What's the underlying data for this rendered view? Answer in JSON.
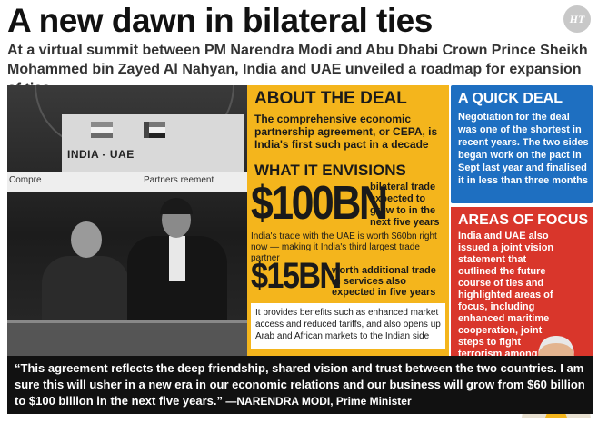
{
  "header": {
    "headline": "A new dawn in bilateral ties",
    "logo_text": "HT",
    "subhead": "At a virtual summit between PM Narendra Modi and Abu Dhabi Crown Prince Sheikh Mohammed bin Zayed Al Nahyan, India and UAE unveiled a roadmap for expansion of ties"
  },
  "photo": {
    "screen_label": "INDIA - UAE",
    "banner_left": "Compre",
    "banner_right": "Partners      reement"
  },
  "about_deal": {
    "title": "ABOUT THE DEAL",
    "text": "The comprehensive economic partnership agreement, or CEPA, is India's first such pact in a decade",
    "envisions_title": "WHAT IT ENVISIONS",
    "stat1_value": "$100BN",
    "stat1_desc": "bilateral trade expected to grow to in the next five years",
    "stat1_note": "India's trade with the UAE is worth $60bn right now — making it India's third largest trade partner",
    "stat2_value": "$15BN",
    "stat2_desc": "worth additional trade in services also expected in five years",
    "benefits": "It provides benefits such as enhanced market access and reduced tariffs, and also opens up Arab and African markets to the Indian side"
  },
  "quick_deal": {
    "title": "A QUICK DEAL",
    "text": "Negotiation for the deal was one of the shortest in recent years. The two sides began work on the pact in Sept last year and finalised it in less than three months"
  },
  "focus": {
    "title": "AREAS OF FOCUS",
    "text": "India and UAE also issued a joint vision statement that outlined the future course of ties and highlighted areas of focus, including enhanced maritime cooperation, joint steps to fight terrorism among others"
  },
  "quote": {
    "text": "“This agreement reflects the deep friendship, shared vision and trust between the two countries. I am sure this will usher in a new era in our economic relations and our business will grow from $60 billion to $100 billion in the next five years.”",
    "attribution": " —NARENDRA MODI, Prime Minister"
  },
  "colors": {
    "deal_bg": "#f4b51c",
    "quick_bg": "#1e6fc1",
    "focus_bg": "#d9362b",
    "quote_bg": "#111111"
  }
}
